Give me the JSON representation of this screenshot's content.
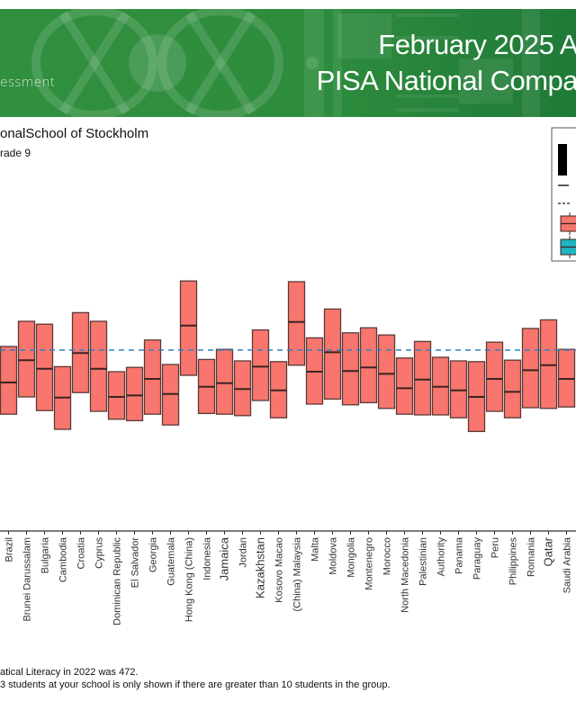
{
  "header": {
    "subtitle_left": "essment",
    "title_line1": "February 2025 A",
    "title_line2": "PISA National Compa",
    "background_color": "#2e8c3d"
  },
  "school": {
    "name": "onalSchool of Stockholm",
    "grade": "rade 9"
  },
  "footnotes": [
    "atical Literacy in 2022 was 472.",
    "3 students at your school is only shown if there are greater than 10 students in the group."
  ],
  "chart_data": {
    "type": "boxplot",
    "title": "",
    "xlabel": "",
    "ylabel": "",
    "reference_line": {
      "value": 472,
      "style": "dashed",
      "color": "#2f80c0"
    },
    "colors": {
      "box_fill": "#f8766d",
      "box_border": "#5a3a38",
      "median": "#3b2322",
      "legend_teal": "#1fb5c0"
    },
    "categories": [
      "Brazil",
      "Brunei Darussalam",
      "Bulgaria",
      "Cambodia",
      "Croatia",
      "Cyprus",
      "Dominican Republic",
      "El Salvador",
      "Georgia",
      "Guatemala",
      "Hong Kong (China)",
      "Indonesia",
      "Jamaica",
      "Jordan",
      "Kazakhstan",
      "Kosovo Macao",
      "(China) Malaysia",
      "Malta",
      "Moldova",
      "Mongolia",
      "Montenegro",
      "Morocco",
      "North Macedonia",
      "Palestinian",
      "Authority",
      "Panama",
      "Paraguay",
      "Peru",
      "Philippines",
      "Romania",
      "Qatar",
      "Saudi Arabia"
    ],
    "boxes": [
      {
        "q1": 383,
        "median": 427,
        "q3": 477
      },
      {
        "q1": 407,
        "median": 458,
        "q3": 512
      },
      {
        "q1": 388,
        "median": 446,
        "q3": 508
      },
      {
        "q1": 362,
        "median": 406,
        "q3": 449
      },
      {
        "q1": 413,
        "median": 468,
        "q3": 524
      },
      {
        "q1": 387,
        "median": 446,
        "q3": 512
      },
      {
        "q1": 376,
        "median": 407,
        "q3": 442
      },
      {
        "q1": 374,
        "median": 409,
        "q3": 448
      },
      {
        "q1": 383,
        "median": 432,
        "q3": 486
      },
      {
        "q1": 368,
        "median": 411,
        "q3": 452
      },
      {
        "q1": 437,
        "median": 506,
        "q3": 568
      },
      {
        "q1": 384,
        "median": 421,
        "q3": 459
      },
      {
        "q1": 383,
        "median": 426,
        "q3": 473
      },
      {
        "q1": 381,
        "median": 418,
        "q3": 457
      },
      {
        "q1": 402,
        "median": 449,
        "q3": 500
      },
      {
        "q1": 378,
        "median": 416,
        "q3": 456
      },
      {
        "q1": 451,
        "median": 511,
        "q3": 567
      },
      {
        "q1": 397,
        "median": 442,
        "q3": 489
      },
      {
        "q1": 404,
        "median": 469,
        "q3": 529
      },
      {
        "q1": 396,
        "median": 443,
        "q3": 496
      },
      {
        "q1": 399,
        "median": 448,
        "q3": 503
      },
      {
        "q1": 391,
        "median": 439,
        "q3": 493
      },
      {
        "q1": 383,
        "median": 419,
        "q3": 461
      },
      {
        "q1": 382,
        "median": 431,
        "q3": 484
      },
      {
        "q1": 382,
        "median": 421,
        "q3": 462
      },
      {
        "q1": 378,
        "median": 416,
        "q3": 457
      },
      {
        "q1": 359,
        "median": 407,
        "q3": 456
      },
      {
        "q1": 387,
        "median": 432,
        "q3": 483
      },
      {
        "q1": 378,
        "median": 414,
        "q3": 458
      },
      {
        "q1": 392,
        "median": 444,
        "q3": 502
      },
      {
        "q1": 391,
        "median": 451,
        "q3": 514
      },
      {
        "q1": 393,
        "median": 432,
        "q3": 473
      }
    ],
    "legend": {
      "placement": "top-right",
      "entries": [
        {
          "symbol": "black-bar",
          "label": ""
        },
        {
          "symbol": "solid-line",
          "label": ""
        },
        {
          "symbol": "dashed-line",
          "label": ""
        },
        {
          "symbol": "red-box",
          "label": ""
        },
        {
          "symbol": "teal-box",
          "label": ""
        }
      ]
    },
    "grid": false
  }
}
